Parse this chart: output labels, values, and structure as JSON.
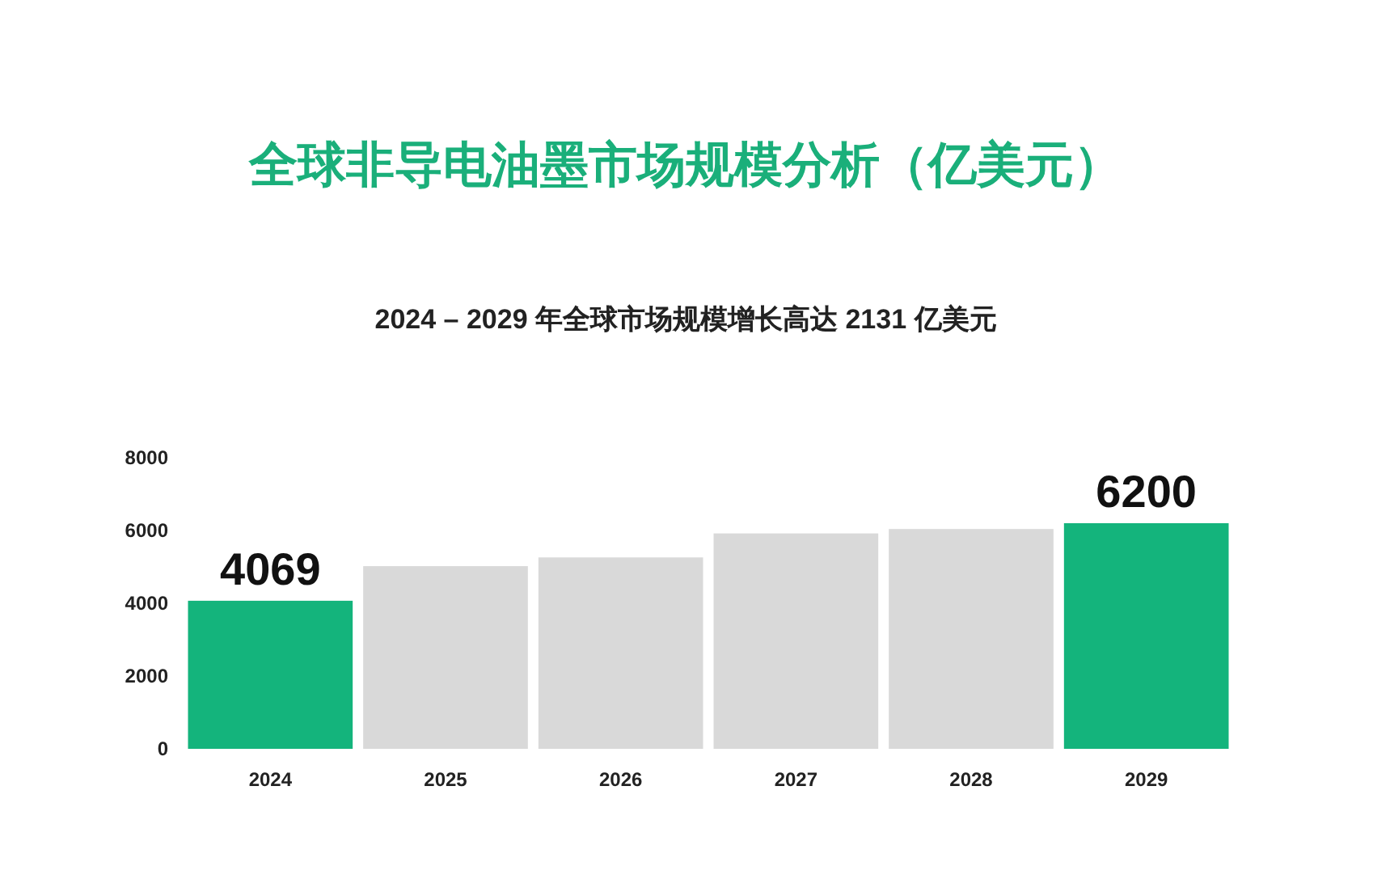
{
  "chart_data": {
    "type": "bar",
    "title": "全球非导电油墨市场规模分析（亿美元）",
    "subtitle": "2024 – 2029 年全球市场规模增长高达 2131 亿美元",
    "categories": [
      "2024",
      "2025",
      "2026",
      "2027",
      "2028",
      "2029"
    ],
    "values": [
      4069,
      5020,
      5260,
      5920,
      6040,
      6200
    ],
    "colors": [
      "#14b47c",
      "#d9d9d9",
      "#d9d9d9",
      "#d9d9d9",
      "#d9d9d9",
      "#14b47c"
    ],
    "value_labels": [
      "4069",
      null,
      null,
      null,
      null,
      "6200"
    ],
    "ylim": [
      0,
      8000
    ],
    "yticks": [
      0,
      2000,
      4000,
      6000,
      8000
    ],
    "grid": false
  }
}
